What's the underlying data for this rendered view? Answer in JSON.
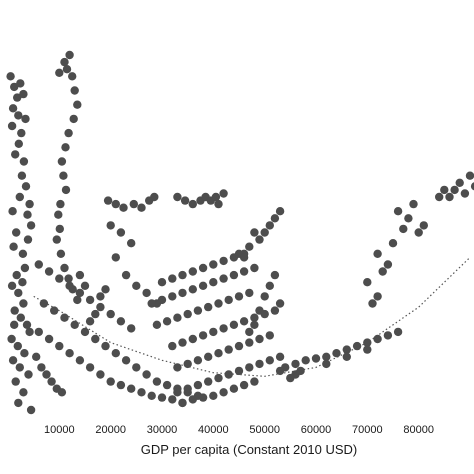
{
  "chart_data": {
    "type": "scatter",
    "xlabel": "GDP per capita (Constant 2010 USD)",
    "x_ticks": [
      "10000",
      "20000",
      "30000",
      "40000",
      "50000",
      "60000",
      "70000",
      "80000"
    ],
    "xlim": [
      0,
      90000
    ],
    "ylim": [
      0,
      100
    ],
    "grid": false,
    "marker_color": "#4d4d4d",
    "trend_color": "#555555",
    "trendline": {
      "type": "quadratic",
      "style": "dotted",
      "x_range": [
        5000,
        90000
      ],
      "points": [
        [
          5000,
          32
        ],
        [
          10000,
          28
        ],
        [
          20000,
          19
        ],
        [
          30000,
          14
        ],
        [
          40000,
          10.5
        ],
        [
          50000,
          9.5
        ],
        [
          60000,
          12
        ],
        [
          70000,
          19
        ],
        [
          80000,
          29
        ],
        [
          90000,
          43
        ]
      ]
    },
    "series": [
      {
        "values": [
          [
            500,
            94
          ],
          [
            1200,
            91
          ],
          [
            1800,
            88
          ],
          [
            2400,
            92
          ],
          [
            3000,
            89
          ],
          [
            1000,
            85
          ],
          [
            2000,
            83
          ],
          [
            800,
            80
          ],
          [
            2600,
            78
          ],
          [
            3400,
            82
          ],
          [
            2100,
            75
          ],
          [
            1400,
            72
          ],
          [
            3100,
            70
          ],
          [
            2700,
            66
          ],
          [
            3500,
            63
          ],
          [
            2300,
            60
          ],
          [
            4200,
            58
          ],
          [
            3800,
            55
          ],
          [
            4500,
            52
          ],
          [
            900,
            56
          ],
          [
            1600,
            50
          ],
          [
            1100,
            46
          ],
          [
            2900,
            44
          ],
          [
            3300,
            40
          ],
          [
            1700,
            38
          ],
          [
            800,
            35
          ],
          [
            2000,
            33
          ],
          [
            3000,
            30
          ],
          [
            1300,
            28
          ],
          [
            2500,
            26
          ],
          [
            3700,
            24
          ],
          [
            4200,
            22
          ],
          [
            700,
            20
          ],
          [
            1900,
            18
          ],
          [
            3200,
            16
          ],
          [
            1000,
            14
          ],
          [
            2300,
            12
          ],
          [
            4000,
            10
          ],
          [
            1500,
            8
          ],
          [
            3000,
            5
          ],
          [
            2000,
            2
          ],
          [
            4500,
            0
          ],
          [
            1200,
            24
          ],
          [
            2800,
            36
          ],
          [
            3900,
            48
          ],
          [
            6000,
            41
          ],
          [
            8000,
            39
          ],
          [
            10000,
            37
          ],
          [
            12000,
            35
          ],
          [
            14000,
            33
          ],
          [
            16000,
            31
          ],
          [
            18000,
            29
          ],
          [
            20000,
            27
          ],
          [
            22000,
            25
          ],
          [
            24000,
            23
          ],
          [
            7000,
            30
          ],
          [
            9000,
            28
          ],
          [
            11000,
            26
          ],
          [
            13000,
            24
          ],
          [
            15000,
            22
          ],
          [
            17000,
            20
          ],
          [
            19000,
            18
          ],
          [
            21000,
            16
          ],
          [
            23000,
            14
          ],
          [
            25000,
            12
          ],
          [
            27000,
            10
          ],
          [
            29000,
            8
          ],
          [
            31000,
            7
          ],
          [
            33000,
            6
          ],
          [
            35000,
            5
          ],
          [
            37000,
            4
          ],
          [
            6000,
            22
          ],
          [
            8000,
            20
          ],
          [
            10000,
            18
          ],
          [
            12000,
            16
          ],
          [
            14000,
            14
          ],
          [
            16000,
            12
          ],
          [
            18000,
            10
          ],
          [
            20000,
            8
          ],
          [
            22000,
            7
          ],
          [
            24000,
            6
          ],
          [
            26000,
            5
          ],
          [
            28000,
            4
          ],
          [
            30000,
            3.5
          ],
          [
            32000,
            3
          ],
          [
            34000,
            2
          ],
          [
            5500,
            15
          ],
          [
            6500,
            12
          ],
          [
            7500,
            10
          ],
          [
            8500,
            8
          ],
          [
            9500,
            6
          ],
          [
            10500,
            5
          ],
          [
            20000,
            52
          ],
          [
            22000,
            50
          ],
          [
            24000,
            47
          ],
          [
            21000,
            43
          ],
          [
            23000,
            38
          ],
          [
            25000,
            35
          ],
          [
            27000,
            33
          ],
          [
            29000,
            30
          ],
          [
            18000,
            32
          ],
          [
            19000,
            34
          ],
          [
            17000,
            27
          ],
          [
            16000,
            25
          ],
          [
            15000,
            35
          ],
          [
            14000,
            38
          ],
          [
            10000,
            95
          ],
          [
            11000,
            98
          ],
          [
            11500,
            96
          ],
          [
            12000,
            100
          ],
          [
            12500,
            94
          ],
          [
            13000,
            90
          ],
          [
            13500,
            86
          ],
          [
            12800,
            82
          ],
          [
            11800,
            78
          ],
          [
            11200,
            74
          ],
          [
            10500,
            70
          ],
          [
            10800,
            66
          ],
          [
            11300,
            62
          ],
          [
            10200,
            58
          ],
          [
            9800,
            55
          ],
          [
            10100,
            51
          ],
          [
            9500,
            48
          ],
          [
            10300,
            44
          ],
          [
            11000,
            40
          ],
          [
            11800,
            37
          ],
          [
            12600,
            34
          ],
          [
            13500,
            31
          ],
          [
            19500,
            59
          ],
          [
            21000,
            58
          ],
          [
            22500,
            57
          ],
          [
            24500,
            58
          ],
          [
            26000,
            57
          ],
          [
            27500,
            59
          ],
          [
            28500,
            60
          ],
          [
            33000,
            60
          ],
          [
            34500,
            59
          ],
          [
            36000,
            58
          ],
          [
            37500,
            59
          ],
          [
            38500,
            60
          ],
          [
            39500,
            59
          ],
          [
            40500,
            60
          ],
          [
            41000,
            58
          ],
          [
            42000,
            61
          ],
          [
            30000,
            36
          ],
          [
            32000,
            37
          ],
          [
            34000,
            38
          ],
          [
            36000,
            39
          ],
          [
            38000,
            40
          ],
          [
            40000,
            41
          ],
          [
            42000,
            42
          ],
          [
            44000,
            43
          ],
          [
            46000,
            44
          ],
          [
            28000,
            30
          ],
          [
            30000,
            31
          ],
          [
            32000,
            32
          ],
          [
            34000,
            33
          ],
          [
            36000,
            34
          ],
          [
            38000,
            35
          ],
          [
            40000,
            36
          ],
          [
            42000,
            37
          ],
          [
            44000,
            38
          ],
          [
            46000,
            39
          ],
          [
            48000,
            40
          ],
          [
            29000,
            24
          ],
          [
            31000,
            25
          ],
          [
            33000,
            26
          ],
          [
            35000,
            27
          ],
          [
            37000,
            28
          ],
          [
            39000,
            29
          ],
          [
            41000,
            30
          ],
          [
            43000,
            31
          ],
          [
            45000,
            32
          ],
          [
            47000,
            33
          ],
          [
            32000,
            18
          ],
          [
            34000,
            19
          ],
          [
            36000,
            20
          ],
          [
            38000,
            21
          ],
          [
            40000,
            22
          ],
          [
            42000,
            23
          ],
          [
            44000,
            24
          ],
          [
            46000,
            25
          ],
          [
            48000,
            26
          ],
          [
            50000,
            27
          ],
          [
            52000,
            28
          ],
          [
            33000,
            12
          ],
          [
            35000,
            13
          ],
          [
            37000,
            14
          ],
          [
            39000,
            15
          ],
          [
            41000,
            16
          ],
          [
            43000,
            17
          ],
          [
            45000,
            18
          ],
          [
            47000,
            19
          ],
          [
            49000,
            20
          ],
          [
            51000,
            21
          ],
          [
            33000,
            5
          ],
          [
            35000,
            6
          ],
          [
            37000,
            7
          ],
          [
            39000,
            8
          ],
          [
            41000,
            9
          ],
          [
            43000,
            10
          ],
          [
            45000,
            11
          ],
          [
            47000,
            12
          ],
          [
            49000,
            13
          ],
          [
            51000,
            14
          ],
          [
            53000,
            15
          ],
          [
            34000,
            2
          ],
          [
            36000,
            3
          ],
          [
            38000,
            3.5
          ],
          [
            40000,
            4
          ],
          [
            42000,
            5
          ],
          [
            44000,
            6
          ],
          [
            46000,
            7
          ],
          [
            48000,
            8
          ],
          [
            45000,
            44
          ],
          [
            47000,
            46
          ],
          [
            49000,
            48
          ],
          [
            50000,
            50
          ],
          [
            51000,
            52
          ],
          [
            52000,
            54
          ],
          [
            53000,
            56
          ],
          [
            48000,
            50
          ],
          [
            46000,
            43
          ],
          [
            51000,
            35
          ],
          [
            52000,
            38
          ],
          [
            50000,
            32
          ],
          [
            49000,
            28
          ],
          [
            48000,
            24
          ],
          [
            47000,
            22
          ],
          [
            53000,
            30
          ],
          [
            54000,
            12
          ],
          [
            56000,
            13
          ],
          [
            58000,
            14
          ],
          [
            60000,
            14.5
          ],
          [
            62000,
            15
          ],
          [
            64000,
            16
          ],
          [
            66000,
            17
          ],
          [
            68000,
            18
          ],
          [
            70000,
            19
          ],
          [
            72000,
            20
          ],
          [
            74000,
            21
          ],
          [
            76000,
            22
          ],
          [
            56000,
            10
          ],
          [
            57000,
            11
          ],
          [
            55000,
            9
          ],
          [
            53000,
            11
          ],
          [
            62000,
            13
          ],
          [
            66000,
            15
          ],
          [
            70000,
            17
          ],
          [
            71000,
            30
          ],
          [
            72000,
            32
          ],
          [
            70000,
            36
          ],
          [
            73000,
            39
          ],
          [
            74000,
            41
          ],
          [
            72000,
            44
          ],
          [
            75000,
            47
          ],
          [
            77000,
            51
          ],
          [
            78000,
            54
          ],
          [
            79000,
            58
          ],
          [
            76000,
            56
          ],
          [
            80000,
            50
          ],
          [
            81000,
            52
          ],
          [
            84000,
            60
          ],
          [
            85000,
            62
          ],
          [
            86000,
            60
          ],
          [
            87000,
            62
          ],
          [
            88000,
            64
          ],
          [
            89000,
            61
          ],
          [
            90000,
            66
          ],
          [
            91000,
            63
          ]
        ]
      }
    ]
  }
}
